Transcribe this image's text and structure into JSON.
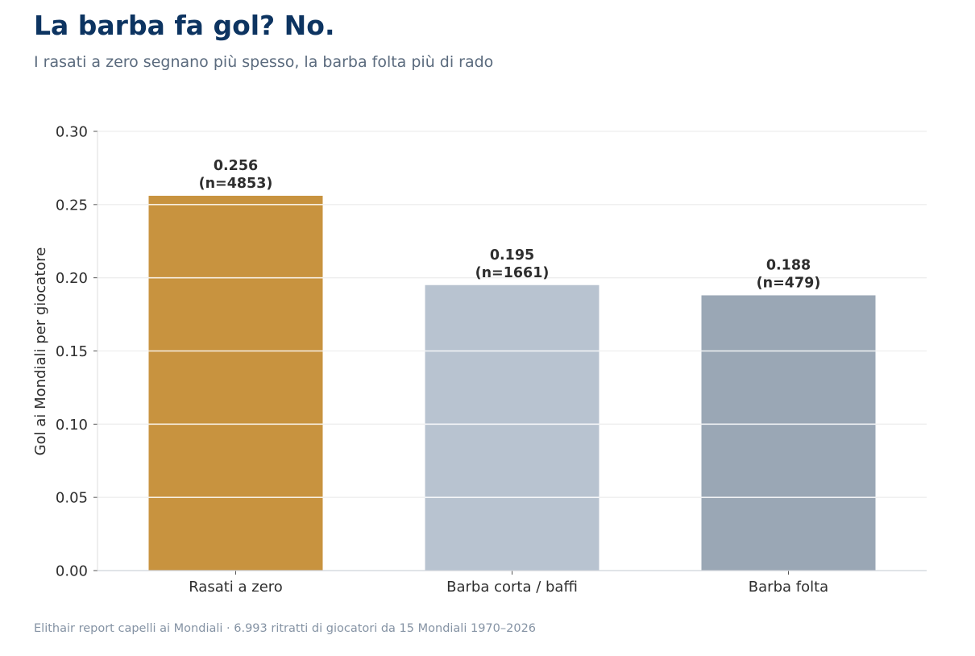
{
  "header": {
    "title": "La barba fa gol? No.",
    "subtitle": "I rasati a zero segnano più spesso, la barba folta più di rado"
  },
  "footer": {
    "source": "Elithair report capelli ai Mondiali  ·  6.993 ritratti di giocatori da 15 Mondiali 1970–2026"
  },
  "chart_data": {
    "type": "bar",
    "title": "La barba fa gol? No.",
    "subtitle": "I rasati a zero segnano più spesso, la barba folta più di rado",
    "xlabel": "",
    "ylabel": "Gol ai Mondiali per giocatore",
    "ylim": [
      0,
      0.3
    ],
    "yticks": [
      "0.00",
      "0.05",
      "0.10",
      "0.15",
      "0.20",
      "0.25",
      "0.30"
    ],
    "categories": [
      "Rasati a zero",
      "Barba corta / baffi",
      "Barba folta"
    ],
    "values": [
      0.256,
      0.195,
      0.188
    ],
    "value_labels": [
      "0.256",
      "0.195",
      "0.188"
    ],
    "sample_labels": [
      "(n=4853)",
      "(n=1661)",
      "(n=479)"
    ],
    "colors": [
      "#c8933f",
      "#b8c3d0",
      "#9aa7b5"
    ],
    "grid": true,
    "legend": "none"
  }
}
